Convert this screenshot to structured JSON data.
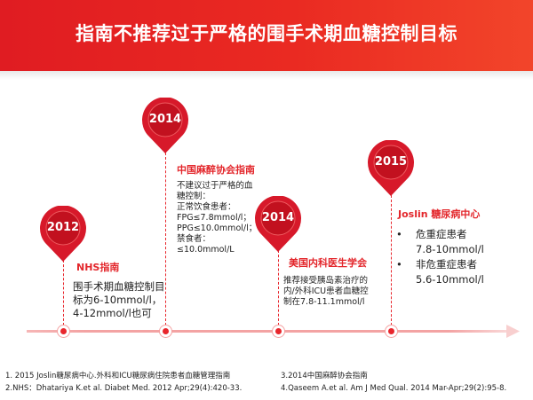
{
  "title": "指南不推荐过于严格的围手术期血糖控制目标",
  "colors": {
    "accent": "#e8262c",
    "header": "#e01c22"
  },
  "milestones": [
    {
      "year": "2012",
      "heading": "NHS指南",
      "lines": [
        "围手术期血糖控制目",
        "标为6-10mmol/l，",
        "4-12mmol/l也可"
      ]
    },
    {
      "year": "2014",
      "heading": "中国麻醉协会指南",
      "lines": [
        "不建议过于严格的血",
        "糖控制：",
        "正常饮食患者：",
        "FPG≤7.8mmol/l；",
        "PPG≤10.0mmol/l；",
        "禁食者：",
        "≤10.0mmol/L"
      ]
    },
    {
      "year": "2014",
      "heading": "美国内科医生学会",
      "lines": [
        "推荐接受胰岛素治疗的",
        "内/外科ICU患者血糖控",
        "制在7.8-11.1mmol/l"
      ]
    },
    {
      "year": "2015",
      "heading": "Joslin 糖尿病中心",
      "items": [
        {
          "label": "危重症患者",
          "value": "7.8-10mmol/l"
        },
        {
          "label": "非危重症患者",
          "value": "5.6-10mmol/l"
        }
      ]
    }
  ],
  "references": [
    "1. 2015 Joslin糖尿病中心.外科和ICU糖尿病住院患者血糖管理指南",
    "2.NHS：Dhatariya K.et al. Diabet Med. 2012 Apr;29(4):420-33.",
    "3.2014中国麻醉协会指南",
    "4.Qaseem A.et al. Am J Med Qual. 2014 Mar-Apr;29(2):95-8."
  ]
}
